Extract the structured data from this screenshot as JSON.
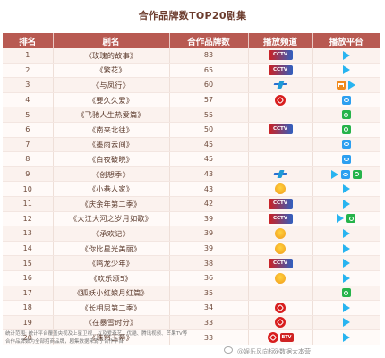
{
  "title": "合作品牌数TOP20剧集",
  "headers": [
    "排名",
    "剧名",
    "合作品牌数",
    "播放频道",
    "播放平台"
  ],
  "rows": [
    {
      "rank": "1",
      "name": "《玫瑰的故事》",
      "brands": "83",
      "channels": [
        "cctv"
      ],
      "platforms": [
        "tencent"
      ]
    },
    {
      "rank": "2",
      "name": "《繁花》",
      "brands": "65",
      "channels": [
        "cctv"
      ],
      "platforms": [
        "tencent"
      ]
    },
    {
      "rank": "3",
      "name": "《与凤行》",
      "brands": "60",
      "channels": [
        "dfws"
      ],
      "platforms": [
        "mango",
        "tencent"
      ]
    },
    {
      "rank": "4",
      "name": "《要久久爱》",
      "brands": "57",
      "channels": [
        "jsws"
      ],
      "platforms": [
        "youku"
      ]
    },
    {
      "rank": "5",
      "name": "《飞驰人生热爱篇》",
      "brands": "55",
      "channels": [],
      "platforms": [
        "iqiyi"
      ]
    },
    {
      "rank": "6",
      "name": "《南来北往》",
      "brands": "50",
      "channels": [
        "cctv"
      ],
      "platforms": [
        "iqiyi"
      ]
    },
    {
      "rank": "7",
      "name": "《墨雨云间》",
      "brands": "45",
      "channels": [],
      "platforms": [
        "youku"
      ]
    },
    {
      "rank": "8",
      "name": "《白夜破晓》",
      "brands": "45",
      "channels": [],
      "platforms": [
        "youku"
      ]
    },
    {
      "rank": "9",
      "name": "《创想季》",
      "brands": "43",
      "channels": [
        "dfws"
      ],
      "platforms": [
        "tencent",
        "youku",
        "iqiyi"
      ]
    },
    {
      "rank": "10",
      "name": "《小巷人家》",
      "brands": "43",
      "channels": [
        "zjws"
      ],
      "platforms": [
        "tencent"
      ]
    },
    {
      "rank": "11",
      "name": "《庆余年第二季》",
      "brands": "42",
      "channels": [
        "cctv"
      ],
      "platforms": [
        "tencent"
      ]
    },
    {
      "rank": "12",
      "name": "《大江大河之岁月如歌》",
      "brands": "39",
      "channels": [
        "cctv"
      ],
      "platforms": [
        "tencent",
        "iqiyi"
      ]
    },
    {
      "rank": "13",
      "name": "《承欢记》",
      "brands": "39",
      "channels": [
        "zjws"
      ],
      "platforms": [
        "tencent"
      ]
    },
    {
      "rank": "14",
      "name": "《你比星光美丽》",
      "brands": "39",
      "channels": [
        "zjws"
      ],
      "platforms": [
        "tencent"
      ]
    },
    {
      "rank": "15",
      "name": "《鸣龙少年》",
      "brands": "38",
      "channels": [
        "cctv"
      ],
      "platforms": [
        "tencent"
      ]
    },
    {
      "rank": "16",
      "name": "《欢乐颂5》",
      "brands": "36",
      "channels": [
        "zjws"
      ],
      "platforms": [
        "tencent"
      ]
    },
    {
      "rank": "17",
      "name": "《狐妖小红娘月红篇》",
      "brands": "35",
      "channels": [],
      "platforms": [
        "iqiyi"
      ]
    },
    {
      "rank": "18",
      "name": "《长相思第二季》",
      "brands": "34",
      "channels": [
        "jsws"
      ],
      "platforms": [
        "tencent"
      ]
    },
    {
      "rank": "19",
      "name": "《在暴雪时分》",
      "brands": "33",
      "channels": [
        "jsws"
      ],
      "platforms": [
        "tencent"
      ]
    },
    {
      "rank": "20",
      "name": "《珠帘玉幕》",
      "brands": "33",
      "channels": [
        "jsws",
        "btv"
      ],
      "platforms": [
        "tencent"
      ]
    }
  ],
  "notes": [
    "统计范围: 统计平台覆盖央视及上星卫视、以及爱奇艺、优酷、腾讯视频、芒果TV等",
    "合作品牌数为全部招商品牌，剧集数据来源于合作平台"
  ],
  "watermarks": {
    "left": "@娱乐风向标",
    "right": "@数据大本营"
  },
  "channel_text": {
    "cctv": "CCTV",
    "btv": "BTV"
  }
}
